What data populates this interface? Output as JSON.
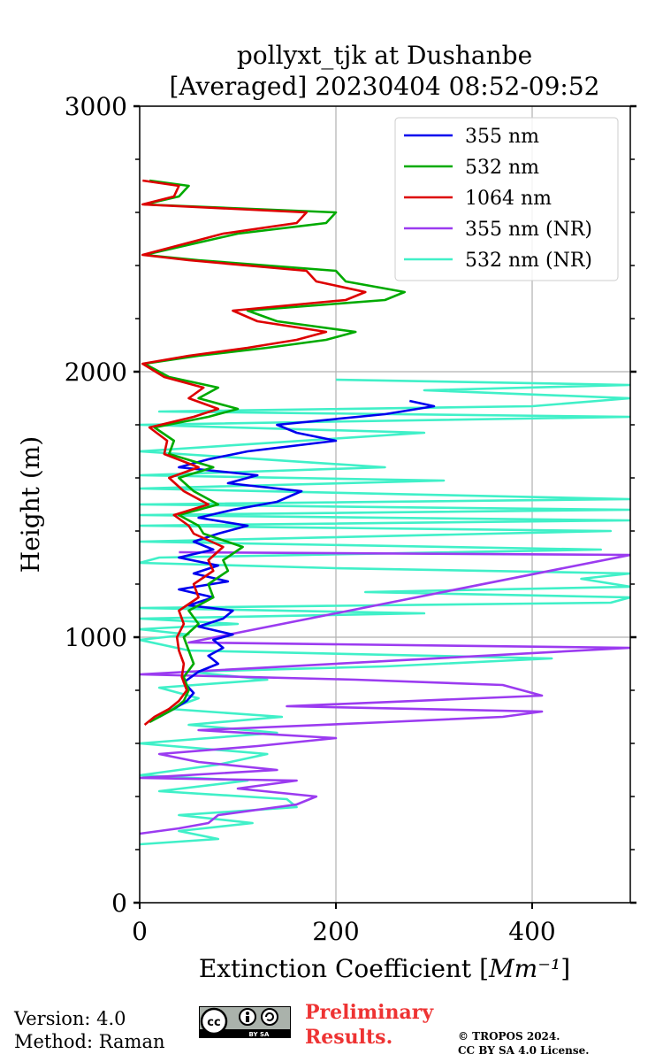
{
  "chart_data": {
    "type": "line",
    "title": "pollyxt_tjk at Dushanbe",
    "subtitle": "[Averaged] 20230404 08:52-09:52",
    "xlabel": "Extinction Coefficient [Mm⁻¹]",
    "ylabel": "Height (m)",
    "xlim": [
      0,
      500
    ],
    "ylim": [
      0,
      3000
    ],
    "x_ticks": [
      0,
      200,
      400
    ],
    "y_ticks": [
      0,
      1000,
      2000,
      3000
    ],
    "grid": true,
    "legend_position": "top-right",
    "series": [
      {
        "name": "355 nm",
        "color": "#0000ee",
        "points": [
          [
            20,
            700
          ],
          [
            35,
            730
          ],
          [
            48,
            760
          ],
          [
            55,
            790
          ],
          [
            45,
            830
          ],
          [
            60,
            870
          ],
          [
            80,
            900
          ],
          [
            70,
            930
          ],
          [
            85,
            960
          ],
          [
            75,
            990
          ],
          [
            95,
            1010
          ],
          [
            60,
            1040
          ],
          [
            85,
            1070
          ],
          [
            95,
            1100
          ],
          [
            50,
            1120
          ],
          [
            75,
            1150
          ],
          [
            40,
            1180
          ],
          [
            90,
            1210
          ],
          [
            55,
            1240
          ],
          [
            80,
            1270
          ],
          [
            40,
            1300
          ],
          [
            75,
            1330
          ],
          [
            55,
            1360
          ],
          [
            80,
            1390
          ],
          [
            110,
            1420
          ],
          [
            60,
            1450
          ],
          [
            95,
            1480
          ],
          [
            140,
            1510
          ],
          [
            165,
            1550
          ],
          [
            90,
            1580
          ],
          [
            120,
            1610
          ],
          [
            40,
            1640
          ],
          [
            70,
            1670
          ],
          [
            110,
            1700
          ],
          [
            200,
            1740
          ],
          [
            160,
            1770
          ],
          [
            140,
            1800
          ],
          [
            250,
            1840
          ],
          [
            300,
            1870
          ],
          [
            275,
            1890
          ]
        ]
      },
      {
        "name": "532 nm",
        "color": "#00aa00",
        "points": [
          [
            10,
            680
          ],
          [
            20,
            700
          ],
          [
            35,
            730
          ],
          [
            45,
            760
          ],
          [
            50,
            800
          ],
          [
            45,
            850
          ],
          [
            55,
            900
          ],
          [
            50,
            950
          ],
          [
            45,
            1000
          ],
          [
            60,
            1050
          ],
          [
            50,
            1100
          ],
          [
            75,
            1150
          ],
          [
            70,
            1200
          ],
          [
            90,
            1250
          ],
          [
            85,
            1290
          ],
          [
            105,
            1340
          ],
          [
            65,
            1390
          ],
          [
            60,
            1420
          ],
          [
            40,
            1460
          ],
          [
            80,
            1500
          ],
          [
            55,
            1550
          ],
          [
            40,
            1600
          ],
          [
            75,
            1640
          ],
          [
            30,
            1690
          ],
          [
            35,
            1740
          ],
          [
            15,
            1790
          ],
          [
            70,
            1830
          ],
          [
            100,
            1860
          ],
          [
            60,
            1900
          ],
          [
            80,
            1940
          ],
          [
            30,
            1980
          ],
          [
            5,
            2030
          ],
          [
            60,
            2060
          ],
          [
            130,
            2090
          ],
          [
            190,
            2120
          ],
          [
            220,
            2150
          ],
          [
            140,
            2190
          ],
          [
            110,
            2230
          ],
          [
            250,
            2270
          ],
          [
            270,
            2300
          ],
          [
            210,
            2340
          ],
          [
            200,
            2380
          ],
          [
            60,
            2420
          ],
          [
            5,
            2440
          ],
          [
            100,
            2520
          ],
          [
            190,
            2560
          ],
          [
            200,
            2600
          ],
          [
            5,
            2630
          ],
          [
            40,
            2660
          ],
          [
            50,
            2700
          ],
          [
            10,
            2720
          ]
        ]
      },
      {
        "name": "1064 nm",
        "color": "#dd0000",
        "points": [
          [
            5,
            670
          ],
          [
            15,
            700
          ],
          [
            30,
            730
          ],
          [
            40,
            760
          ],
          [
            48,
            800
          ],
          [
            43,
            850
          ],
          [
            45,
            900
          ],
          [
            40,
            950
          ],
          [
            38,
            1000
          ],
          [
            45,
            1050
          ],
          [
            40,
            1100
          ],
          [
            60,
            1150
          ],
          [
            55,
            1200
          ],
          [
            75,
            1250
          ],
          [
            70,
            1290
          ],
          [
            85,
            1340
          ],
          [
            55,
            1390
          ],
          [
            50,
            1420
          ],
          [
            35,
            1460
          ],
          [
            70,
            1500
          ],
          [
            45,
            1550
          ],
          [
            30,
            1600
          ],
          [
            60,
            1640
          ],
          [
            25,
            1690
          ],
          [
            28,
            1740
          ],
          [
            10,
            1790
          ],
          [
            55,
            1830
          ],
          [
            80,
            1860
          ],
          [
            50,
            1900
          ],
          [
            65,
            1940
          ],
          [
            25,
            1980
          ],
          [
            3,
            2030
          ],
          [
            50,
            2060
          ],
          [
            110,
            2090
          ],
          [
            160,
            2120
          ],
          [
            190,
            2150
          ],
          [
            120,
            2190
          ],
          [
            95,
            2230
          ],
          [
            210,
            2270
          ],
          [
            230,
            2300
          ],
          [
            180,
            2340
          ],
          [
            170,
            2380
          ],
          [
            50,
            2420
          ],
          [
            3,
            2440
          ],
          [
            85,
            2520
          ],
          [
            160,
            2560
          ],
          [
            170,
            2600
          ],
          [
            3,
            2630
          ],
          [
            35,
            2660
          ],
          [
            40,
            2700
          ],
          [
            3,
            2720
          ]
        ]
      },
      {
        "name": "355 nm (NR)",
        "color": "#9b3bf0",
        "points": [
          [
            0,
            260
          ],
          [
            40,
            280
          ],
          [
            70,
            300
          ],
          [
            80,
            330
          ],
          [
            160,
            370
          ],
          [
            180,
            400
          ],
          [
            100,
            430
          ],
          [
            160,
            460
          ],
          [
            0,
            470
          ],
          [
            140,
            500
          ],
          [
            60,
            530
          ],
          [
            20,
            560
          ],
          [
            120,
            590
          ],
          [
            200,
            620
          ],
          [
            60,
            650
          ],
          [
            250,
            680
          ],
          [
            370,
            700
          ],
          [
            410,
            720
          ],
          [
            150,
            740
          ],
          [
            410,
            780
          ],
          [
            370,
            820
          ],
          [
            220,
            840
          ],
          [
            0,
            860
          ],
          [
            500,
            960
          ],
          [
            50,
            980
          ],
          [
            500,
            1310
          ],
          [
            40,
            1320
          ]
        ]
      },
      {
        "name": "532 nm (NR)",
        "color": "#40f0c8",
        "points": [
          [
            0,
            220
          ],
          [
            80,
            240
          ],
          [
            40,
            270
          ],
          [
            115,
            300
          ],
          [
            40,
            330
          ],
          [
            160,
            360
          ],
          [
            150,
            390
          ],
          [
            20,
            420
          ],
          [
            110,
            460
          ],
          [
            0,
            480
          ],
          [
            80,
            520
          ],
          [
            130,
            560
          ],
          [
            0,
            600
          ],
          [
            140,
            640
          ],
          [
            50,
            670
          ],
          [
            145,
            700
          ],
          [
            30,
            730
          ],
          [
            60,
            770
          ],
          [
            20,
            810
          ],
          [
            130,
            840
          ],
          [
            50,
            870
          ],
          [
            250,
            890
          ],
          [
            420,
            920
          ],
          [
            50,
            950
          ],
          [
            0,
            990
          ],
          [
            50,
            1010
          ],
          [
            0,
            1030
          ],
          [
            100,
            1050
          ],
          [
            0,
            1070
          ],
          [
            290,
            1090
          ],
          [
            0,
            1110
          ],
          [
            480,
            1130
          ],
          [
            500,
            1150
          ],
          [
            230,
            1170
          ],
          [
            500,
            1190
          ],
          [
            450,
            1220
          ],
          [
            500,
            1240
          ],
          [
            200,
            1260
          ],
          [
            0,
            1280
          ],
          [
            20,
            1300
          ],
          [
            470,
            1330
          ],
          [
            0,
            1360
          ],
          [
            480,
            1400
          ],
          [
            0,
            1420
          ],
          [
            500,
            1440
          ],
          [
            0,
            1460
          ],
          [
            500,
            1480
          ],
          [
            0,
            1500
          ],
          [
            500,
            1520
          ],
          [
            0,
            1560
          ],
          [
            310,
            1590
          ],
          [
            0,
            1610
          ],
          [
            250,
            1640
          ],
          [
            0,
            1700
          ],
          [
            290,
            1770
          ],
          [
            0,
            1800
          ],
          [
            500,
            1830
          ],
          [
            20,
            1850
          ],
          [
            400,
            1870
          ],
          [
            500,
            1900
          ],
          [
            290,
            1930
          ],
          [
            500,
            1950
          ],
          [
            200,
            1970
          ]
        ]
      }
    ]
  },
  "footer": {
    "version": "Version: 4.0",
    "method": "Method: Raman",
    "license_badge_text": "BY SA",
    "cc_text": "cc",
    "preliminary_line1": "Preliminary",
    "preliminary_line2": "Results.",
    "copyright_line1": "© TROPOS 2024.",
    "copyright_line2": "CC BY SA 4.0 License."
  }
}
